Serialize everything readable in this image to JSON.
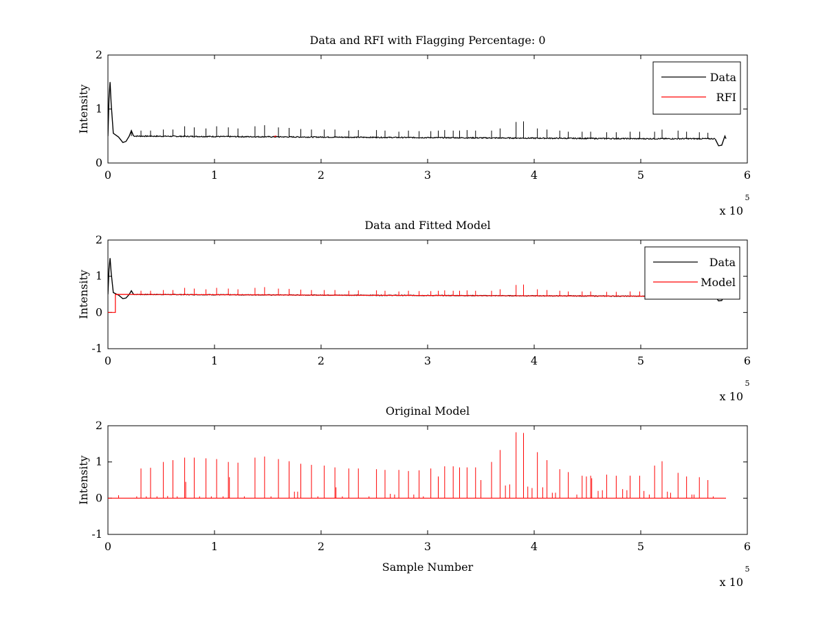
{
  "chart_data": [
    {
      "type": "line",
      "title": "Data and RFI with Flagging Percentage: 0",
      "xlabel": "",
      "ylabel": "Intensity",
      "xlim": [
        0,
        6
      ],
      "ylim": [
        0,
        2
      ],
      "xticks": [
        "0",
        "1",
        "2",
        "3",
        "4",
        "5",
        "6"
      ],
      "yticks": [
        "0",
        "1",
        "2"
      ],
      "x_exponent": "x 10",
      "x_exponent_power": "5",
      "legend": "top-right",
      "series": [
        {
          "name": "Data",
          "color": "#000000",
          "baseline": [
            [
              0,
              0.55
            ],
            [
              0.1,
              0.5
            ],
            [
              1,
              0.49
            ],
            [
              2,
              0.48
            ],
            [
              3,
              0.47
            ],
            [
              4,
              0.46
            ],
            [
              5,
              0.45
            ],
            [
              5.7,
              0.45
            ]
          ],
          "startup": [
            [
              0,
              0.5
            ],
            [
              0.01,
              1.2
            ],
            [
              0.02,
              1.5
            ],
            [
              0.03,
              1.1
            ],
            [
              0.05,
              0.55
            ],
            [
              0.1,
              0.48
            ],
            [
              0.14,
              0.38
            ],
            [
              0.17,
              0.4
            ],
            [
              0.2,
              0.5
            ],
            [
              0.22,
              0.6
            ],
            [
              0.24,
              0.5
            ]
          ],
          "tail": [
            [
              5.7,
              0.44
            ],
            [
              5.73,
              0.32
            ],
            [
              5.76,
              0.33
            ],
            [
              5.79,
              0.5
            ],
            [
              5.8,
              0.45
            ]
          ],
          "spikes": [
            [
              0.22,
              0.6
            ],
            [
              0.31,
              0.6
            ],
            [
              0.4,
              0.6
            ],
            [
              0.52,
              0.62
            ],
            [
              0.61,
              0.62
            ],
            [
              0.72,
              0.68
            ],
            [
              0.81,
              0.66
            ],
            [
              0.92,
              0.64
            ],
            [
              1.02,
              0.68
            ],
            [
              1.13,
              0.66
            ],
            [
              1.22,
              0.64
            ],
            [
              1.38,
              0.68
            ],
            [
              1.47,
              0.7
            ],
            [
              1.6,
              0.66
            ],
            [
              1.7,
              0.65
            ],
            [
              1.81,
              0.63
            ],
            [
              1.91,
              0.62
            ],
            [
              2.03,
              0.62
            ],
            [
              2.13,
              0.62
            ],
            [
              2.26,
              0.6
            ],
            [
              2.35,
              0.61
            ],
            [
              2.52,
              0.61
            ],
            [
              2.6,
              0.6
            ],
            [
              2.73,
              0.58
            ],
            [
              2.82,
              0.6
            ],
            [
              2.92,
              0.59
            ],
            [
              3.03,
              0.59
            ],
            [
              3.1,
              0.6
            ],
            [
              3.16,
              0.61
            ],
            [
              3.24,
              0.6
            ],
            [
              3.3,
              0.6
            ],
            [
              3.37,
              0.61
            ],
            [
              3.45,
              0.6
            ],
            [
              3.6,
              0.6
            ],
            [
              3.68,
              0.64
            ],
            [
              3.83,
              0.76
            ],
            [
              3.9,
              0.77
            ],
            [
              4.03,
              0.64
            ],
            [
              4.12,
              0.62
            ],
            [
              4.24,
              0.6
            ],
            [
              4.32,
              0.58
            ],
            [
              4.45,
              0.58
            ],
            [
              4.53,
              0.58
            ],
            [
              4.68,
              0.57
            ],
            [
              4.77,
              0.57
            ],
            [
              4.9,
              0.58
            ],
            [
              4.99,
              0.58
            ],
            [
              5.13,
              0.58
            ],
            [
              5.2,
              0.62
            ],
            [
              5.35,
              0.6
            ],
            [
              5.43,
              0.58
            ],
            [
              5.55,
              0.57
            ],
            [
              5.63,
              0.56
            ]
          ]
        },
        {
          "name": "RFI",
          "color": "#ff0000",
          "points": [
            [
              1.56,
              0.49
            ],
            [
              1.58,
              0.5
            ]
          ]
        }
      ]
    },
    {
      "type": "line",
      "title": "Data and Fitted Model",
      "xlabel": "",
      "ylabel": "Intensity",
      "xlim": [
        0,
        6
      ],
      "ylim": [
        -1,
        2
      ],
      "xticks": [
        "0",
        "1",
        "2",
        "3",
        "4",
        "5",
        "6"
      ],
      "yticks": [
        "-1",
        "0",
        "1",
        "2"
      ],
      "x_exponent": "x 10",
      "x_exponent_power": "5",
      "legend": "top-right",
      "series": [
        {
          "name": "Data",
          "color": "#000000"
        },
        {
          "name": "Model",
          "color": "#ff0000",
          "points": [
            [
              0,
              0
            ],
            [
              0.07,
              0
            ],
            [
              0.07,
              0.5
            ],
            [
              1,
              0.49
            ],
            [
              2,
              0.48
            ],
            [
              3,
              0.47
            ],
            [
              4,
              0.46
            ],
            [
              5,
              0.45
            ],
            [
              5.78,
              0.45
            ]
          ],
          "spikes": [
            [
              0.31,
              0.6
            ],
            [
              0.4,
              0.6
            ],
            [
              0.52,
              0.62
            ],
            [
              0.61,
              0.62
            ],
            [
              0.72,
              0.68
            ],
            [
              0.81,
              0.66
            ],
            [
              0.92,
              0.64
            ],
            [
              1.02,
              0.68
            ],
            [
              1.13,
              0.66
            ],
            [
              1.22,
              0.64
            ],
            [
              1.38,
              0.68
            ],
            [
              1.47,
              0.7
            ],
            [
              1.6,
              0.66
            ],
            [
              1.7,
              0.65
            ],
            [
              1.81,
              0.63
            ],
            [
              1.91,
              0.62
            ],
            [
              2.03,
              0.62
            ],
            [
              2.13,
              0.62
            ],
            [
              2.26,
              0.6
            ],
            [
              2.35,
              0.61
            ],
            [
              2.52,
              0.61
            ],
            [
              2.6,
              0.6
            ],
            [
              2.73,
              0.58
            ],
            [
              2.82,
              0.6
            ],
            [
              2.92,
              0.59
            ],
            [
              3.03,
              0.59
            ],
            [
              3.1,
              0.6
            ],
            [
              3.16,
              0.61
            ],
            [
              3.24,
              0.6
            ],
            [
              3.3,
              0.6
            ],
            [
              3.37,
              0.61
            ],
            [
              3.45,
              0.6
            ],
            [
              3.6,
              0.6
            ],
            [
              3.68,
              0.64
            ],
            [
              3.83,
              0.76
            ],
            [
              3.9,
              0.77
            ],
            [
              4.03,
              0.64
            ],
            [
              4.12,
              0.62
            ],
            [
              4.24,
              0.6
            ],
            [
              4.32,
              0.58
            ],
            [
              4.45,
              0.58
            ],
            [
              4.53,
              0.58
            ],
            [
              4.68,
              0.57
            ],
            [
              4.77,
              0.57
            ],
            [
              4.9,
              0.58
            ],
            [
              4.99,
              0.58
            ],
            [
              5.13,
              0.58
            ],
            [
              5.2,
              0.62
            ],
            [
              5.35,
              0.6
            ],
            [
              5.43,
              0.58
            ],
            [
              5.55,
              0.57
            ],
            [
              5.63,
              0.56
            ]
          ]
        }
      ]
    },
    {
      "type": "line",
      "title": "Original Model",
      "xlabel": "Sample Number",
      "ylabel": "Intensity",
      "xlim": [
        0,
        6
      ],
      "ylim": [
        -1,
        2
      ],
      "xticks": [
        "0",
        "1",
        "2",
        "3",
        "4",
        "5",
        "6"
      ],
      "yticks": [
        "-1",
        "0",
        "1",
        "2"
      ],
      "x_exponent": "x 10",
      "x_exponent_power": "5",
      "series": [
        {
          "name": "",
          "color": "#ff0000",
          "baseline": 0,
          "xmax": 5.8,
          "spikes": [
            [
              0.1,
              0.08
            ],
            [
              0.27,
              0.05
            ],
            [
              0.31,
              0.82
            ],
            [
              0.36,
              0.05
            ],
            [
              0.4,
              0.84
            ],
            [
              0.46,
              0.05
            ],
            [
              0.52,
              1.0
            ],
            [
              0.56,
              0.06
            ],
            [
              0.61,
              1.05
            ],
            [
              0.65,
              0.05
            ],
            [
              0.72,
              1.12
            ],
            [
              0.73,
              0.45
            ],
            [
              0.81,
              1.12
            ],
            [
              0.86,
              0.05
            ],
            [
              0.92,
              1.1
            ],
            [
              0.97,
              0.05
            ],
            [
              1.02,
              1.08
            ],
            [
              1.08,
              0.05
            ],
            [
              1.13,
              1.0
            ],
            [
              1.14,
              0.58
            ],
            [
              1.22,
              0.98
            ],
            [
              1.28,
              0.05
            ],
            [
              1.38,
              1.12
            ],
            [
              1.47,
              1.15
            ],
            [
              1.53,
              0.05
            ],
            [
              1.6,
              1.08
            ],
            [
              1.7,
              1.02
            ],
            [
              1.75,
              0.18
            ],
            [
              1.78,
              0.18
            ],
            [
              1.81,
              0.95
            ],
            [
              1.91,
              0.92
            ],
            [
              1.97,
              0.05
            ],
            [
              2.03,
              0.9
            ],
            [
              2.13,
              0.85
            ],
            [
              2.14,
              0.3
            ],
            [
              2.2,
              0.05
            ],
            [
              2.26,
              0.82
            ],
            [
              2.35,
              0.82
            ],
            [
              2.45,
              0.05
            ],
            [
              2.52,
              0.8
            ],
            [
              2.6,
              0.78
            ],
            [
              2.65,
              0.12
            ],
            [
              2.69,
              0.1
            ],
            [
              2.73,
              0.78
            ],
            [
              2.82,
              0.75
            ],
            [
              2.87,
              0.1
            ],
            [
              2.92,
              0.77
            ],
            [
              2.96,
              0.05
            ],
            [
              3.03,
              0.82
            ],
            [
              3.1,
              0.6
            ],
            [
              3.16,
              0.88
            ],
            [
              3.24,
              0.88
            ],
            [
              3.3,
              0.85
            ],
            [
              3.37,
              0.85
            ],
            [
              3.45,
              0.85
            ],
            [
              3.5,
              0.5
            ],
            [
              3.6,
              1.0
            ],
            [
              3.68,
              1.33
            ],
            [
              3.73,
              0.35
            ],
            [
              3.77,
              0.38
            ],
            [
              3.83,
              1.82
            ],
            [
              3.9,
              1.8
            ],
            [
              3.94,
              0.32
            ],
            [
              3.98,
              0.28
            ],
            [
              4.03,
              1.27
            ],
            [
              4.08,
              0.3
            ],
            [
              4.12,
              1.05
            ],
            [
              4.17,
              0.15
            ],
            [
              4.2,
              0.15
            ],
            [
              4.24,
              0.8
            ],
            [
              4.32,
              0.72
            ],
            [
              4.4,
              0.1
            ],
            [
              4.45,
              0.62
            ],
            [
              4.49,
              0.6
            ],
            [
              4.53,
              0.62
            ],
            [
              4.54,
              0.55
            ],
            [
              4.6,
              0.2
            ],
            [
              4.64,
              0.22
            ],
            [
              4.68,
              0.65
            ],
            [
              4.77,
              0.62
            ],
            [
              4.83,
              0.25
            ],
            [
              4.87,
              0.22
            ],
            [
              4.9,
              0.62
            ],
            [
              4.99,
              0.62
            ],
            [
              5.03,
              0.2
            ],
            [
              5.08,
              0.1
            ],
            [
              5.13,
              0.9
            ],
            [
              5.2,
              1.02
            ],
            [
              5.25,
              0.18
            ],
            [
              5.28,
              0.15
            ],
            [
              5.35,
              0.7
            ],
            [
              5.43,
              0.6
            ],
            [
              5.48,
              0.1
            ],
            [
              5.5,
              0.1
            ],
            [
              5.55,
              0.58
            ],
            [
              5.63,
              0.5
            ],
            [
              5.68,
              0.05
            ]
          ]
        }
      ]
    }
  ]
}
